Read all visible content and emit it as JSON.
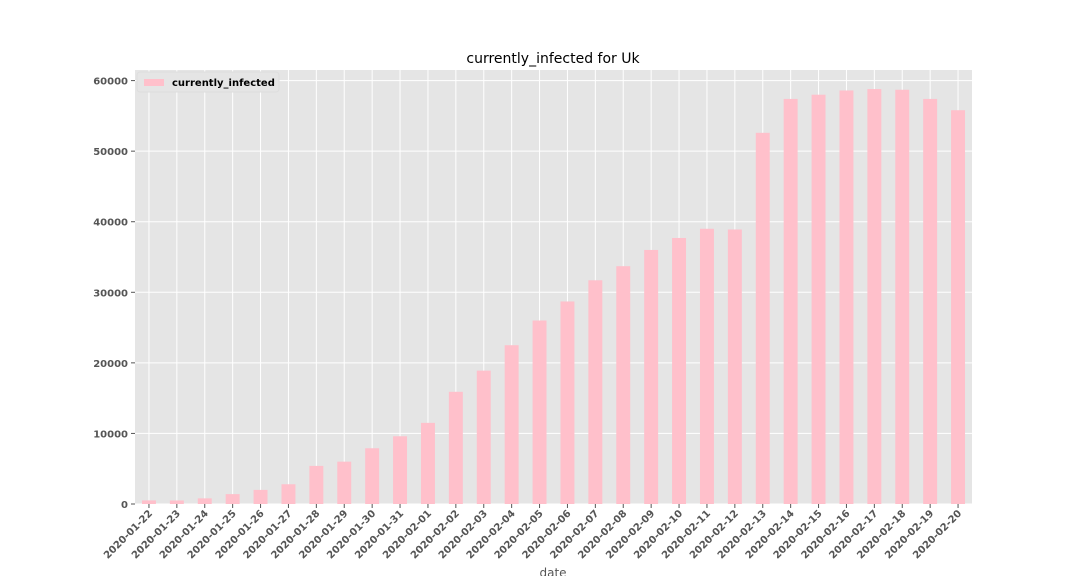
{
  "chart_data": {
    "type": "bar",
    "title": "currently_infected for Uk",
    "xlabel": "date",
    "ylabel": "",
    "ylim": [
      0,
      61500
    ],
    "yticks": [
      0,
      10000,
      20000,
      30000,
      40000,
      50000,
      60000
    ],
    "grid": true,
    "legend_position": "top-left",
    "categories": [
      "2020-01-22",
      "2020-01-23",
      "2020-01-24",
      "2020-01-25",
      "2020-01-26",
      "2020-01-27",
      "2020-01-28",
      "2020-01-29",
      "2020-01-30",
      "2020-01-31",
      "2020-02-01",
      "2020-02-02",
      "2020-02-03",
      "2020-02-04",
      "2020-02-05",
      "2020-02-06",
      "2020-02-07",
      "2020-02-08",
      "2020-02-09",
      "2020-02-10",
      "2020-02-11",
      "2020-02-12",
      "2020-02-13",
      "2020-02-14",
      "2020-02-15",
      "2020-02-16",
      "2020-02-17",
      "2020-02-18",
      "2020-02-19",
      "2020-02-20"
    ],
    "series": [
      {
        "name": "currently_infected",
        "color": "#ffc0cb",
        "values": [
          510,
          500,
          800,
          1400,
          2000,
          2800,
          5400,
          6000,
          7900,
          9600,
          11500,
          15900,
          18900,
          22500,
          26000,
          28700,
          31700,
          33700,
          36000,
          37700,
          39000,
          38900,
          52600,
          57400,
          58000,
          58600,
          58800,
          58700,
          57400,
          55800
        ]
      }
    ]
  }
}
